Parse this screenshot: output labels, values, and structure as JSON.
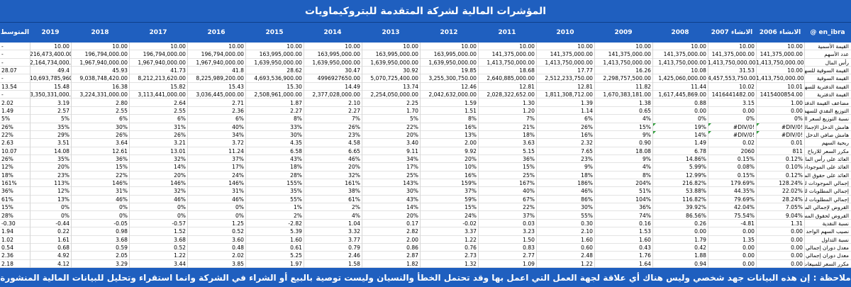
{
  "title": "المؤشرات المالية لشركة المتقدمة للبتروكيماويات",
  "header": {
    "avg": "المتوسط",
    "years": [
      "2019",
      "2018",
      "2017",
      "2016",
      "2015",
      "2014",
      "2013",
      "2012",
      "2011",
      "2010",
      "2009",
      "2008",
      "2007 الانشاء",
      "2006 الانشاء"
    ],
    "handle": "@ en_ibra"
  },
  "rows": [
    {
      "label": "القيمة الأسمية",
      "avg": "-",
      "v": [
        "10.00",
        "10.00",
        "10.00",
        "10.00",
        "10.00",
        "10.00",
        "10.00",
        "10.00",
        "10.00",
        "10.00",
        "10.00",
        "10.00",
        "10.00",
        "10.00"
      ]
    },
    {
      "label": "عدد الأسهم",
      "avg": "-",
      "v": [
        "216,473,400.00",
        "196,794,000.00",
        "196,794,000.00",
        "196,794,000.00",
        "163,995,000.00",
        "163,995,000.00",
        "163,995,000.00",
        "163,995,000.00",
        "141,375,000.00",
        "141,375,000.00",
        "141,375,000.00",
        "141,375,000.00",
        "141,375,000.00",
        "141,375,000.00"
      ]
    },
    {
      "label": "رأس المال",
      "avg": "-",
      "v": [
        "2,164,734,000.00",
        "1,967,940,000.00",
        "1,967,940,000.00",
        "1,967,940,000.00",
        "1,639,950,000.00",
        "1,639,950,000.00",
        "1,639,950,000.00",
        "1,639,950,000.00",
        "1,413,750,000.00",
        "1,413,750,000.00",
        "1,413,750,000.00",
        "1,413,750,000.00",
        "1,413,750,000.00",
        "1,413,750,000.00"
      ]
    },
    {
      "label": "القيمة السوقية للسهم",
      "avg": "28.07",
      "v": [
        "49.4",
        "45.93",
        "41.73",
        "41.8",
        "28.62",
        "30.47",
        "30.92",
        "19.85",
        "18.68",
        "17.77",
        "16.26",
        "10.08",
        "31.53",
        "10.00"
      ]
    },
    {
      "label": "القيمة السوقية",
      "avg": "-",
      "v": [
        "10,693,785,960.00",
        "9,038,748,420.00",
        "8,212,213,620.00",
        "8,225,989,200.00",
        "4,693,536,900.00",
        "4996927650.00",
        "5,070,725,400.00",
        "3,255,300,750.00",
        "2,640,885,000.00",
        "2,512,233,750.00",
        "2,298,757,500.00",
        "1,425,060,000.00",
        "4,457,553,750.00",
        "1,413,750,000.00"
      ]
    },
    {
      "label": "القيمة الدفترية للسهم",
      "avg": "13.54",
      "v": [
        "15.48",
        "16.38",
        "15.82",
        "15.43",
        "15.30",
        "14.49",
        "13.74",
        "12.46",
        "12.81",
        "12.81",
        "11.82",
        "11.44",
        "10.02",
        "10.01"
      ]
    },
    {
      "label": "القيمة الدفترية",
      "avg": "-",
      "v": [
        "3,350,331,000.00",
        "3,224,331,000.00",
        "3,113,441,000.00",
        "3,036,445,000.00",
        "2,508,961,000.00",
        "2,377,028,000.00",
        "2,254,050,000.00",
        "2,042,632,000.00",
        "2,028,322,652.00",
        "1,811,308,712.00",
        "1,670,383,181.00",
        "1,617,445,869.00",
        "1416441482.00",
        "1415400854.00"
      ]
    },
    {
      "label": "مضاعف القيمة الدفترية",
      "avg": "2.02",
      "v": [
        "3.19",
        "2.80",
        "2.64",
        "2.71",
        "1.87",
        "2.10",
        "2.25",
        "1.59",
        "1.30",
        "1.39",
        "1.38",
        "0.88",
        "3.15",
        "1.00"
      ]
    },
    {
      "label": "التوزيع النقدي للسهم",
      "avg": "1.49",
      "v": [
        "2.57",
        "2.55",
        "2.55",
        "2.36",
        "2.27",
        "2.27",
        "1.70",
        "1.51",
        "1.20",
        "1.14",
        "0.65",
        "0.00",
        "0.00",
        "0.00"
      ]
    },
    {
      "label": "نسبة التوزيع لسعر السهم",
      "avg": "5%",
      "v": [
        "5%",
        "6%",
        "6%",
        "6%",
        "8%",
        "7%",
        "5%",
        "8%",
        "7%",
        "6%",
        "4%",
        "0%",
        "0%",
        "0%"
      ]
    },
    {
      "label": "هامش الدخل الإجمالي",
      "avg": "26%",
      "v": [
        "35%",
        "30%",
        "31%",
        "40%",
        "33%",
        "26%",
        "22%",
        "16%",
        "21%",
        "26%",
        "15%",
        "19%",
        "#DIV/0!",
        "#DIV/0!"
      ],
      "tri": true
    },
    {
      "label": "هامش صافي الدخل",
      "avg": "22%",
      "v": [
        "29%",
        "26%",
        "26%",
        "34%",
        "30%",
        "23%",
        "20%",
        "13%",
        "18%",
        "16%",
        "9%",
        "14%",
        "#DIV/0!",
        "#DIV/0!"
      ],
      "tri": true
    },
    {
      "label": "ربحية السهم",
      "avg": "2.63",
      "v": [
        "3.51",
        "3.64",
        "3.21",
        "3.72",
        "4.35",
        "4.58",
        "3.40",
        "2.00",
        "3.63",
        "2.32",
        "0.90",
        "1.49",
        "0.02",
        "0.01"
      ]
    },
    {
      "label": "مكرر السعر للارباح",
      "avg": "10.07",
      "v": [
        "14.08",
        "12.61",
        "13.01",
        "11.24",
        "6.58",
        "6.65",
        "9.11",
        "9.92",
        "5.15",
        "7.65",
        "18.08",
        "6.78",
        "2060",
        "811"
      ]
    },
    {
      "label": "العائد على رأس المال",
      "avg": "26%",
      "v": [
        "35%",
        "36%",
        "32%",
        "37%",
        "43%",
        "46%",
        "34%",
        "20%",
        "36%",
        "23%",
        "9%",
        "14.86%",
        "0.15%",
        "0.12%"
      ]
    },
    {
      "label": "العائد على الموجودات",
      "avg": "12%",
      "v": [
        "20%",
        "15%",
        "14%",
        "17%",
        "18%",
        "20%",
        "17%",
        "10%",
        "15%",
        "9%",
        "4%",
        "5.99%",
        "0.08%",
        "0.10%"
      ]
    },
    {
      "label": "العائد على حقوق المساهمين",
      "avg": "18%",
      "v": [
        "23%",
        "22%",
        "20%",
        "24%",
        "28%",
        "32%",
        "25%",
        "16%",
        "25%",
        "18%",
        "8%",
        "12.99%",
        "0.15%",
        "0.12%"
      ]
    },
    {
      "label": "إجمالي الموجودات لحقوق المساهمين",
      "avg": "161%",
      "v": [
        "113%",
        "146%",
        "146%",
        "146%",
        "155%",
        "161%",
        "143%",
        "159%",
        "167%",
        "186%",
        "204%",
        "216.82%",
        "179.69%",
        "128.24%"
      ]
    },
    {
      "label": "إجمالي المطلوبات للموجودات",
      "avg": "36%",
      "v": [
        "12%",
        "31%",
        "32%",
        "31%",
        "35%",
        "38%",
        "30%",
        "37%",
        "40%",
        "46%",
        "51%",
        "53.88%",
        "44.35%",
        "22.02%"
      ]
    },
    {
      "label": "إجمالي المطلوبات لحقوق المساهمين",
      "avg": "61%",
      "v": [
        "13%",
        "46%",
        "46%",
        "46%",
        "55%",
        "61%",
        "43%",
        "59%",
        "67%",
        "86%",
        "104%",
        "116.82%",
        "79.69%",
        "28.24%"
      ]
    },
    {
      "label": "القروض لإجمالي الموجودات",
      "avg": "15%",
      "v": [
        "0%",
        "0%",
        "0%",
        "0%",
        "1%",
        "2%",
        "14%",
        "15%",
        "22%",
        "30%",
        "36%",
        "39.92%",
        "42.04%",
        "7.05%"
      ]
    },
    {
      "label": "القروض لحقوق المساهمين",
      "avg": "28%",
      "v": [
        "0%",
        "0%",
        "0%",
        "0%",
        "2%",
        "4%",
        "20%",
        "24%",
        "37%",
        "55%",
        "74%",
        "86.56%",
        "75.54%",
        "9.04%"
      ]
    },
    {
      "label": "نسبة النقدية",
      "avg": "-0.30",
      "v": [
        "-0.44",
        "-0.05",
        "-0.57",
        "1.25",
        "-2.82",
        "1.04",
        "0.17",
        "-0.02",
        "0.03",
        "0.30",
        "0.16",
        "0.26",
        "-4.81",
        "1.31"
      ]
    },
    {
      "label": "نصيب السهم الواحد من النقد",
      "avg": "1.94",
      "v": [
        "0.22",
        "0.98",
        "1.52",
        "0.52",
        "5.39",
        "3.32",
        "2.82",
        "3.37",
        "3.23",
        "2.10",
        "1.53",
        "0.00",
        "0.00",
        "0.00"
      ]
    },
    {
      "label": "نسبة التداول",
      "avg": "1.02",
      "v": [
        "1.61",
        "3.68",
        "3.68",
        "3.60",
        "1.60",
        "3.77",
        "2.00",
        "1.22",
        "1.50",
        "1.60",
        "1.60",
        "1.79",
        "1.35",
        "0.00"
      ]
    },
    {
      "label": "معدل دوران إجمالي الموجودات",
      "avg": "0.54",
      "v": [
        "0.68",
        "0.59",
        "0.52",
        "0.48",
        "0.61",
        "0.79",
        "0.86",
        "0.76",
        "0.83",
        "0.60",
        "0.43",
        "0.42",
        "0.00",
        "0.00"
      ]
    },
    {
      "label": "معدل دوران إجمالي الموجودات الثابتة",
      "avg": "2.36",
      "v": [
        "4.92",
        "2.05",
        "1.22",
        "2.02",
        "5.25",
        "2.46",
        "2.87",
        "2.73",
        "2.77",
        "2.48",
        "1.76",
        "1.88",
        "0.00",
        "0.00"
      ]
    },
    {
      "label": "مكرر السعر للمبيعات",
      "avg": "2.18",
      "v": [
        "4.12",
        "3.29",
        "3.44",
        "3.85",
        "1.97",
        "1.58",
        "1.82",
        "1.32",
        "1.09",
        "1.22",
        "1.64",
        "0.94",
        "0.00",
        "0.00"
      ]
    }
  ],
  "footer": "ملاحظة : إن هذه البيانات جهد شخصي وليس هناك أي علاقة لجهة العمل التي اعمل بها وقد تحتمل الخطأ والنسيان وليست توصية بالبيع أو الشراء في الشركة وانما استقراء وتحليل للبيانات المالية المنشورة"
}
